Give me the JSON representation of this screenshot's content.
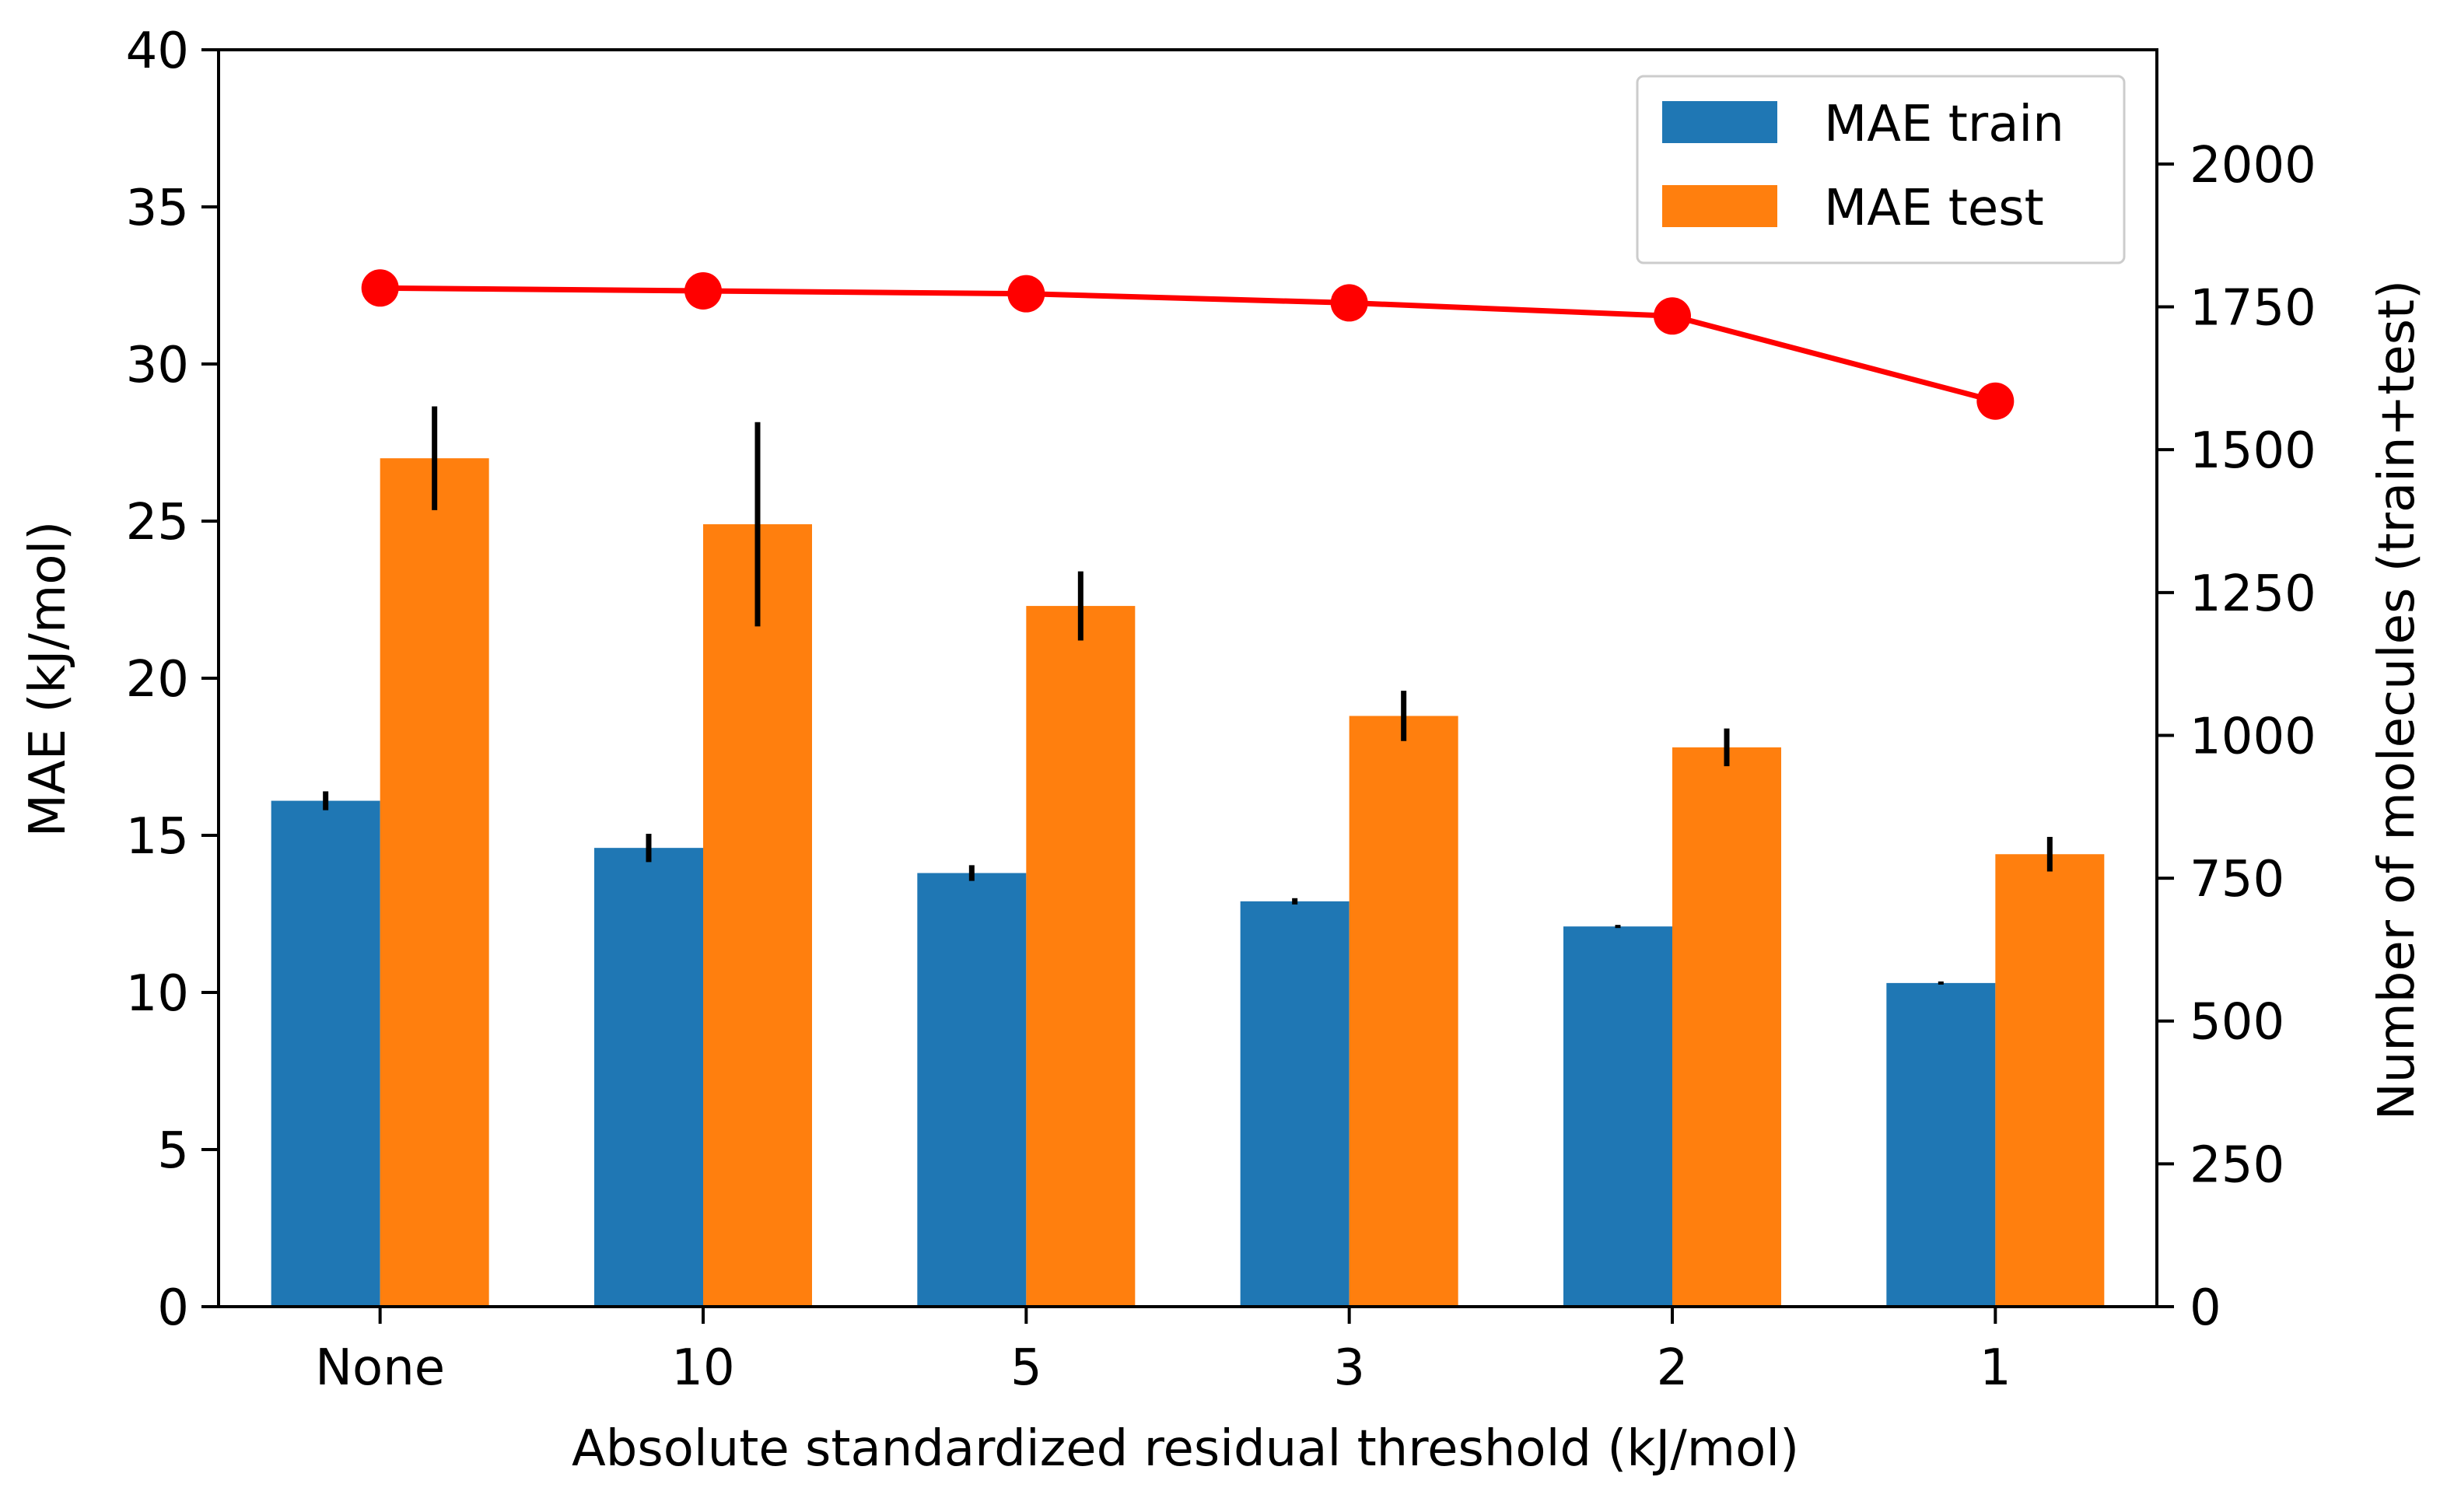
{
  "chart_data": {
    "type": "bar",
    "title": "",
    "xlabel": "Absolute standardized residual threshold (kJ/mol)",
    "ylabel": "MAE (kJ/mol)",
    "y2label": "Number of molecules (train+test)",
    "categories": [
      "None",
      "10",
      "5",
      "3",
      "2",
      "1"
    ],
    "ylim": [
      0,
      40
    ],
    "yticks": [
      0,
      5,
      10,
      15,
      20,
      25,
      30,
      35,
      40
    ],
    "y2lim": [
      0,
      2200
    ],
    "y2ticks": [
      0,
      250,
      500,
      750,
      1000,
      1250,
      1500,
      1750,
      2000
    ],
    "series": [
      {
        "name": "MAE train",
        "kind": "bar",
        "axis": "left",
        "color": "#1f77b4",
        "values": [
          16.1,
          14.6,
          13.8,
          12.9,
          12.1,
          10.3
        ],
        "errors": [
          0.3,
          0.45,
          0.25,
          0.1,
          0.05,
          0.05
        ]
      },
      {
        "name": "MAE test",
        "kind": "bar",
        "axis": "left",
        "color": "#ff7f0e",
        "values": [
          27.0,
          24.9,
          22.3,
          18.8,
          17.8,
          14.4
        ],
        "errors": [
          1.65,
          3.25,
          1.1,
          0.8,
          0.6,
          0.55
        ]
      },
      {
        "name": "Number of molecules",
        "kind": "line",
        "axis": "right",
        "color": "#ff0000",
        "values": [
          1783,
          1778,
          1773,
          1757,
          1734,
          1585
        ]
      }
    ],
    "legend": {
      "placement": "top-right",
      "entries": [
        "MAE train",
        "MAE test"
      ]
    },
    "grid": false,
    "right_axis_color": "#ff0000"
  }
}
